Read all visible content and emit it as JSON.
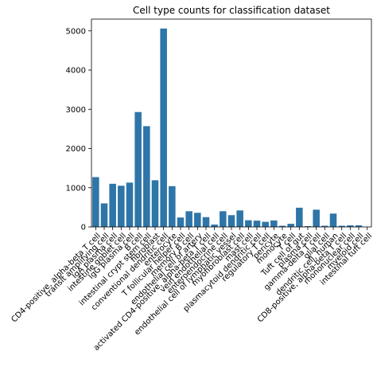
{
  "chart_data": {
    "type": "bar",
    "title": "Cell type counts for classification dataset",
    "xlabel": "",
    "ylabel": "",
    "ylim": [
      0,
      5300
    ],
    "yticks": [
      0,
      1000,
      2000,
      3000,
      4000,
      5000
    ],
    "grid": false,
    "legend": "none",
    "bar_color": "#2e75a8",
    "categories": [
      "CD4-positive, alpha-beta T cell",
      "transit amplifying cell",
      "IgA plasma cell",
      "intestine goblet cell",
      "IgG plasma cell",
      "B cell",
      "intestinal crypt stem cell",
      "fibroblast",
      "conventional dendritic cell",
      "enterocyte",
      "T follicular helper cell",
      "memory B cell",
      "endothelial cell of artery",
      "activated CD4-positive, alpha-beta T cell",
      "vein endothelial cell",
      "enteroendocrine cell",
      "endothelial cell of lymphatic vessel",
      "myofibroblast cell",
      "mast cell",
      "plasmacytoid dendritic cell",
      "regulatory T cell",
      "pericyte",
      "monocyte",
      "T cell",
      "Tuft cell of gut",
      "plasma cell",
      "gamma-delta T cell",
      "glial cell",
      "dendritic cell, human",
      "CD8-positive, alpha-beta T cell",
      "mononuclear cell",
      "myeloid cell",
      "intestinal tuft cell"
    ],
    "tick_labels_shown": [
      "CD4-positive, alpha-beta T cell",
      "transit amplifying cell",
      "IgA plasma cell",
      "intestine goblet cell",
      "IgG plasma cell",
      "B cell",
      "intestinal crypt stem cell",
      "fibroblast",
      "conventional dendritic cell",
      "enterocyte",
      "T follicular helper cell",
      "memory B cell",
      "endothelial cell of artery",
      "activated CD4-positive, alpha-beta T cell",
      "vein endothelial cell",
      "enteroendocrine cell",
      "endothelial cell of lymphatic vessel",
      "myofibroblast cell",
      "mast cell",
      "plasmacytoid dendritic cell",
      "regulatory T cell",
      "pericyte",
      "monocyte",
      "T cell",
      "Tuft cell of gut",
      "plasma cell",
      "gamma-delta T cell",
      "glial cell",
      "dendritic cell, human",
      "CD8-positive, alpha-beta T cell",
      "mononuclear cell",
      "myeloid cell",
      "intestinal tuft cell"
    ],
    "values": [
      1270,
      600,
      1100,
      1050,
      1130,
      2930,
      2570,
      1190,
      5060,
      1040,
      240,
      400,
      360,
      250,
      60,
      400,
      300,
      420,
      170,
      160,
      130,
      165,
      30,
      80,
      490,
      20,
      440,
      30,
      340,
      30,
      40,
      40,
      0
    ]
  }
}
